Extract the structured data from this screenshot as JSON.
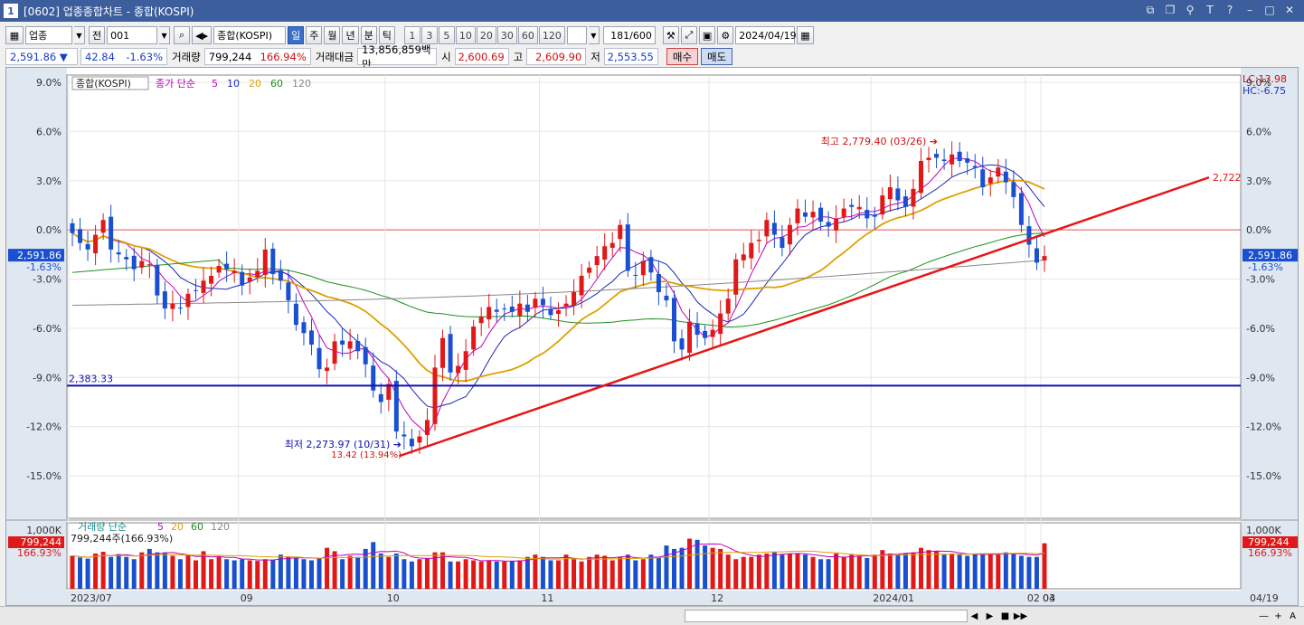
{
  "window": {
    "number": "1",
    "title": "[0602] 업종종합차트 - 종합(KOSPI)"
  },
  "toolbar": {
    "market": "업종",
    "prev_label": "전",
    "code": "001",
    "name": "종합(KOSPI)",
    "periods": [
      "일",
      "주",
      "월",
      "년",
      "분",
      "틱"
    ],
    "active_period": "일",
    "intervals": [
      "1",
      "3",
      "5",
      "10",
      "20",
      "30",
      "60",
      "120"
    ],
    "count": "181",
    "count_max": "/600",
    "date": "2024/04/19"
  },
  "quote": {
    "price": "2,591.86",
    "change_arrow": "▼",
    "change": "42.84",
    "change_pct": "-1.63%",
    "volume_label": "거래량",
    "volume": "799,244",
    "volume_pct": "166.94%",
    "amount_label": "거래대금",
    "amount": "13,856,859백만",
    "open_label": "시",
    "open": "2,600.69",
    "high_label": "고",
    "high": "2,609.90",
    "low_label": "저",
    "low": "2,553.55",
    "buy_label": "매수",
    "sell_label": "매도"
  },
  "chart_data": {
    "type": "candlestick",
    "title": "종합(KOSPI)",
    "legend": {
      "price_type": "종가",
      "ma_type": "단순",
      "ma_periods": [
        "5",
        "10",
        "20",
        "60",
        "120"
      ]
    },
    "ma_colors": {
      "5": "#c000c0",
      "10": "#1a28b8",
      "20": "#e0a000",
      "60": "#1f8f1f",
      "120": "#888888"
    },
    "y_ticks_pct": [
      "9.0%",
      "6.0%",
      "3.0%",
      "0.0%",
      "-3.0%",
      "-6.0%",
      "-9.0%",
      "-12.0%",
      "-15.0%"
    ],
    "ylim_pct": [
      -15,
      9
    ],
    "x_labels": [
      "2023/07",
      "09",
      "10",
      "11",
      "12",
      "2024/01",
      "02",
      "03",
      "04",
      "04/19"
    ],
    "lc": "LC:13.98",
    "hc": "HC:-6.75",
    "last_price": "2,591.86",
    "last_change": "-1.63%",
    "support_line": {
      "label": "2,383.33",
      "pct": -9.5
    },
    "trendline_end_label": "2,722",
    "high_annotation": "최고 2,779.40 (03/26)",
    "low_annotation": "최저 2,273.97 (10/31)",
    "low_annotation2": "13.42 (13.94%)",
    "close_pct": [
      -0.2,
      -0.8,
      -1.2,
      -0.3,
      0.6,
      -1.2,
      -1.5,
      -1.8,
      -2.4,
      -1.9,
      -2.1,
      -4.0,
      -4.8,
      -4.5,
      -4.8,
      -3.9,
      -3.7,
      -3.1,
      -2.8,
      -2.2,
      -2.4,
      -2.5,
      -3.4,
      -2.9,
      -2.5,
      -1.2,
      -2.7,
      -3.1,
      -4.3,
      -5.8,
      -6.3,
      -7.0,
      -8.5,
      -8.4,
      -6.8,
      -7.0,
      -6.8,
      -7.4,
      -8.2,
      -9.8,
      -10.5,
      -9.4,
      -12.3,
      -12.6,
      -13.2,
      -12.6,
      -11.6,
      -8.4,
      -6.6,
      -8.7,
      -8.3,
      -7.4,
      -5.9,
      -5.3,
      -4.7,
      -5.0,
      -4.8,
      -5.0,
      -4.5,
      -5.0,
      -4.2,
      -4.6,
      -5.2,
      -4.9,
      -4.5,
      -3.8,
      -2.8,
      -2.3,
      -1.6,
      -1.0,
      -0.8,
      0.3,
      -2.5,
      -2.8,
      -1.9,
      -2.6,
      -3.8,
      -4.3,
      -6.8,
      -7.3,
      -5.6,
      -6.4,
      -6.6,
      -6.1,
      -5.1,
      -4.2,
      -1.8,
      -1.5,
      -0.8,
      -0.6,
      0.6,
      -0.3,
      -1.1,
      0.3,
      1.3,
      0.8,
      1.1,
      0.5,
      0.2,
      0.7,
      1.3,
      1.4,
      1.4,
      0.7,
      0.8,
      2.1,
      2.6,
      1.8,
      1.4,
      2.5,
      4.2,
      4.4,
      4.4,
      4.2,
      4.6,
      4.2,
      4.1,
      3.8,
      2.6,
      3.2,
      3.8,
      2.9,
      2.0,
      0.3,
      -0.9,
      -2.0,
      -1.6
    ],
    "volume": {
      "title": "거래량",
      "ma_type": "단순",
      "ma_periods": [
        "5",
        "20",
        "60",
        "120"
      ],
      "max_label": "1,000K",
      "last": "799,244",
      "last_pct": "166.93%",
      "info": "799,244주(166.93%)",
      "values_k": [
        580,
        550,
        530,
        620,
        650,
        560,
        610,
        560,
        520,
        640,
        700,
        640,
        640,
        580,
        520,
        600,
        500,
        660,
        520,
        560,
        520,
        500,
        520,
        500,
        490,
        520,
        500,
        600,
        560,
        540,
        520,
        500,
        540,
        720,
        660,
        520,
        580,
        560,
        700,
        820,
        620,
        560,
        620,
        520,
        480,
        520,
        530,
        640,
        640,
        480,
        480,
        520,
        500,
        480,
        500,
        480,
        480,
        490,
        500,
        560,
        600,
        560,
        500,
        500,
        600,
        520,
        480,
        560,
        600,
        580,
        500,
        560,
        600,
        500,
        520,
        600,
        560,
        760,
        700,
        720,
        880,
        860,
        760,
        720,
        700,
        600,
        520,
        560,
        560,
        600,
        620,
        640,
        600,
        620,
        620,
        600,
        560,
        520,
        520,
        620,
        560,
        600,
        580,
        540,
        600,
        680,
        620,
        600,
        620,
        640,
        720,
        680,
        660,
        600,
        620,
        600,
        580,
        620,
        600,
        620,
        600,
        640,
        620,
        580,
        560,
        560,
        799
      ]
    }
  },
  "status": {
    "scroll_controls": [
      "◀",
      "▶",
      "■",
      "▶▶",
      "―",
      "+",
      "A"
    ]
  }
}
